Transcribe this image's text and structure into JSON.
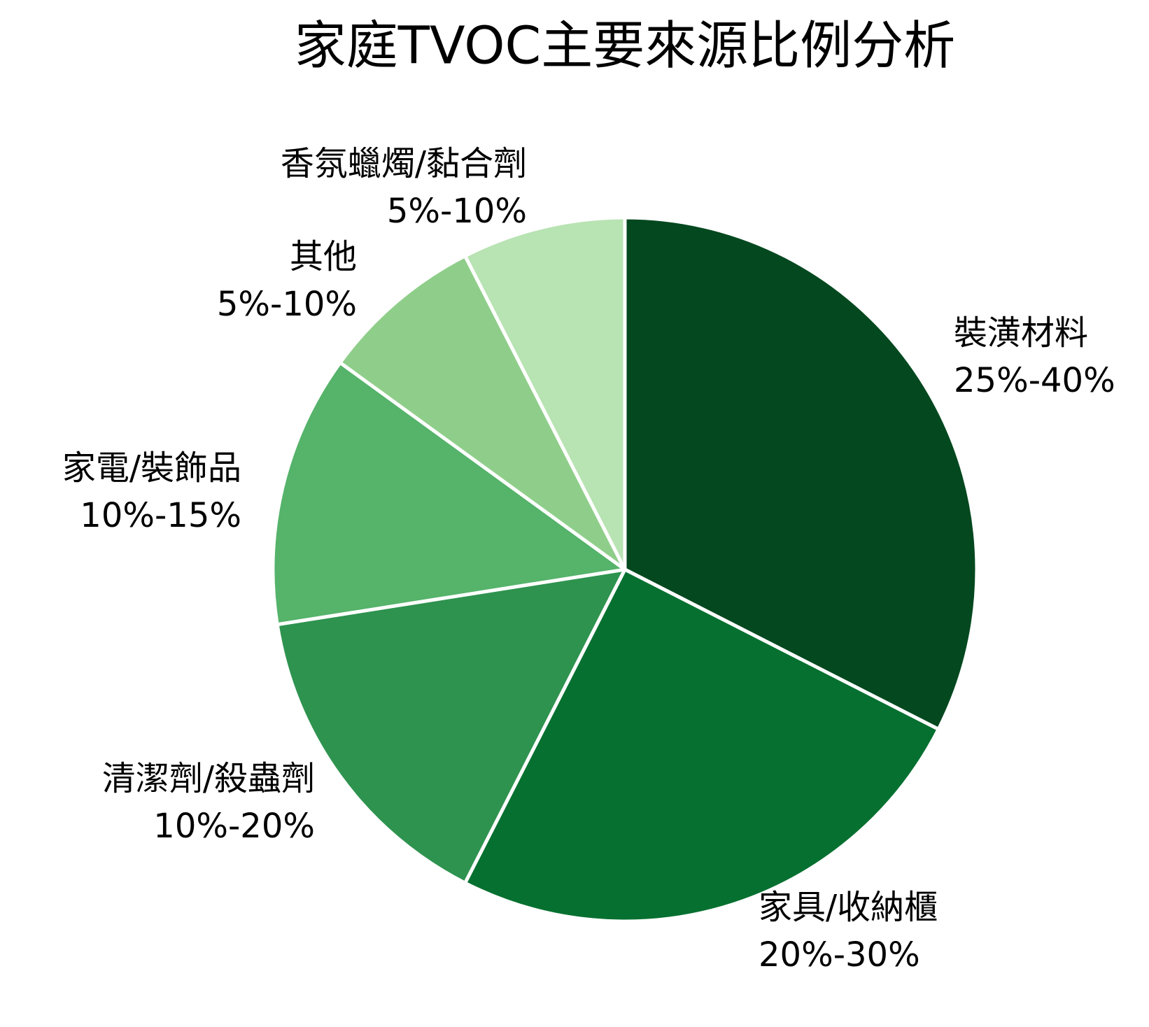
{
  "chart_data": {
    "type": "pie",
    "title": "家庭TVOC主要來源比例分析",
    "categories": [
      "裝潢材料",
      "家具/收納櫃",
      "清潔劑/殺蟲劑",
      "家電/裝飾品",
      "其他",
      "香氛蠟燭/黏合劑"
    ],
    "values": [
      32.5,
      25,
      15,
      12.5,
      7.5,
      7.5
    ],
    "range_labels": [
      "25%-40%",
      "20%-30%",
      "10%-20%",
      "10%-15%",
      "5%-10%",
      "5%-10%"
    ],
    "colors": [
      "#03481f",
      "#067030",
      "#2e934f",
      "#55b36a",
      "#8fce8a",
      "#b8e3b3"
    ]
  }
}
